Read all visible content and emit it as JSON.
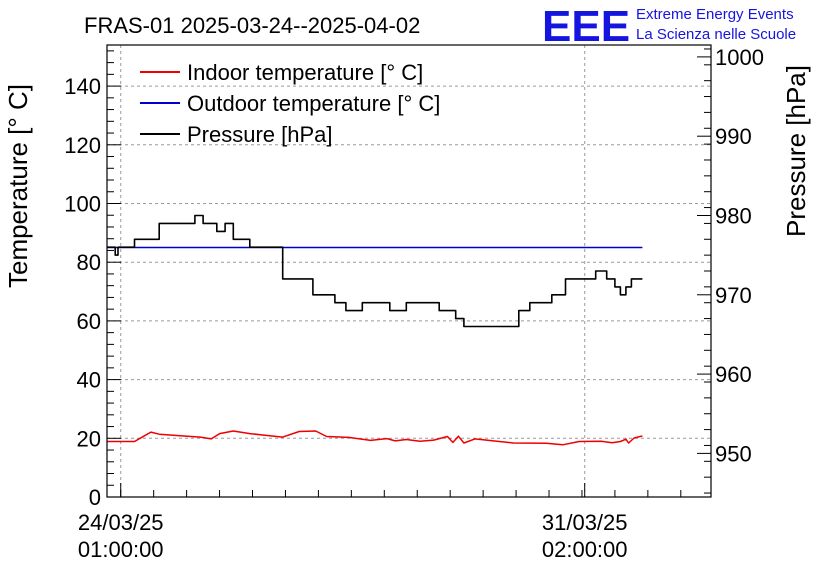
{
  "logo": {
    "mark": "EEE",
    "line1": "Extreme Energy Events",
    "line2": "La Scienza nelle Scuole",
    "color": "#1515e0"
  },
  "chart_data": {
    "type": "line",
    "title": "FRAS-01 2025-03-24--2025-04-02",
    "ylabel": "Temperature [° C]",
    "y2label": "Pressure [hPa]",
    "xlabel": "",
    "x_axis": {
      "type": "datetime",
      "range": [
        "2025-03-23 20:00:00",
        "2025-04-02 00:00:00"
      ],
      "tick_labels": [
        {
          "date": "2025-03-24 01:00:00",
          "line1": "24/03/25",
          "line2": "01:00:00"
        },
        {
          "date": "2025-03-31 02:00:00",
          "line1": "31/03/25",
          "line2": "02:00:00"
        }
      ]
    },
    "ylim": [
      0,
      154
    ],
    "yticks": [
      0,
      20,
      40,
      60,
      80,
      100,
      120,
      140
    ],
    "y2lim": [
      944.5,
      1001.5
    ],
    "y2ticks": [
      950,
      960,
      970,
      980,
      990,
      1000
    ],
    "grid": true,
    "legend_position": "top-left",
    "series": [
      {
        "name": "Indoor temperature [° C]",
        "axis": "left",
        "color": "#ee0000",
        "points": [
          [
            "2025-03-23 20:00",
            18.9
          ],
          [
            "2025-03-24 06:00",
            18.9
          ],
          [
            "2025-03-24 09:00",
            20.5
          ],
          [
            "2025-03-24 12:00",
            22.1
          ],
          [
            "2025-03-24 15:00",
            21.4
          ],
          [
            "2025-03-25 00:00",
            20.8
          ],
          [
            "2025-03-25 06:00",
            20.4
          ],
          [
            "2025-03-25 10:00",
            19.8
          ],
          [
            "2025-03-25 13:00",
            21.6
          ],
          [
            "2025-03-25 18:00",
            22.5
          ],
          [
            "2025-03-26 00:00",
            21.6
          ],
          [
            "2025-03-26 06:00",
            21.0
          ],
          [
            "2025-03-26 12:00",
            20.4
          ],
          [
            "2025-03-26 18:00",
            22.3
          ],
          [
            "2025-03-27 00:00",
            22.5
          ],
          [
            "2025-03-27 04:00",
            20.6
          ],
          [
            "2025-03-27 12:00",
            20.3
          ],
          [
            "2025-03-27 20:00",
            19.3
          ],
          [
            "2025-03-28 02:00",
            19.9
          ],
          [
            "2025-03-28 05:00",
            19.1
          ],
          [
            "2025-03-28 09:00",
            19.6
          ],
          [
            "2025-03-28 14:00",
            19.0
          ],
          [
            "2025-03-28 19:00",
            19.4
          ],
          [
            "2025-03-29 00:00",
            20.6
          ],
          [
            "2025-03-29 02:00",
            18.6
          ],
          [
            "2025-03-29 04:00",
            20.7
          ],
          [
            "2025-03-29 06:00",
            18.4
          ],
          [
            "2025-03-29 10:00",
            19.8
          ],
          [
            "2025-03-29 18:00",
            19.0
          ],
          [
            "2025-03-30 00:00",
            18.4
          ],
          [
            "2025-03-30 12:00",
            18.3
          ],
          [
            "2025-03-30 18:00",
            17.8
          ],
          [
            "2025-03-31 00:00",
            18.9
          ],
          [
            "2025-03-31 08:00",
            19.0
          ],
          [
            "2025-03-31 12:00",
            18.5
          ],
          [
            "2025-03-31 15:00",
            18.9
          ],
          [
            "2025-03-31 17:00",
            19.7
          ],
          [
            "2025-03-31 18:00",
            18.4
          ],
          [
            "2025-03-31 20:00",
            20.1
          ],
          [
            "2025-03-31 23:00",
            20.8
          ]
        ]
      },
      {
        "name": "Outdoor temperature [° C]",
        "axis": "left",
        "color": "#0000cc",
        "points": [
          [
            "2025-03-23 20:00",
            85.0
          ],
          [
            "2025-03-31 23:00",
            85.0
          ]
        ]
      },
      {
        "name": "Pressure [hPa]",
        "axis": "right",
        "color": "#000000",
        "points": [
          [
            "2025-03-23 20:00",
            976.0
          ],
          [
            "2025-03-23 23:00",
            975.0
          ],
          [
            "2025-03-24 00:00",
            976.0
          ],
          [
            "2025-03-24 04:00",
            976.0
          ],
          [
            "2025-03-24 06:00",
            977.0
          ],
          [
            "2025-03-24 12:00",
            977.0
          ],
          [
            "2025-03-24 15:00",
            979.0
          ],
          [
            "2025-03-25 02:00",
            979.0
          ],
          [
            "2025-03-25 04:00",
            980.0
          ],
          [
            "2025-03-25 07:00",
            979.0
          ],
          [
            "2025-03-25 12:00",
            978.0
          ],
          [
            "2025-03-25 15:00",
            979.0
          ],
          [
            "2025-03-25 18:00",
            977.0
          ],
          [
            "2025-03-26 00:00",
            976.0
          ],
          [
            "2025-03-26 05:00",
            976.0
          ],
          [
            "2025-03-26 12:00",
            972.0
          ],
          [
            "2025-03-26 17:00",
            972.0
          ],
          [
            "2025-03-26 23:00",
            970.0
          ],
          [
            "2025-03-27 07:00",
            969.0
          ],
          [
            "2025-03-27 11:00",
            968.0
          ],
          [
            "2025-03-27 15:00",
            968.0
          ],
          [
            "2025-03-27 17:00",
            969.0
          ],
          [
            "2025-03-27 23:00",
            969.0
          ],
          [
            "2025-03-28 03:00",
            968.0
          ],
          [
            "2025-03-28 09:00",
            969.0
          ],
          [
            "2025-03-28 16:00",
            969.0
          ],
          [
            "2025-03-28 21:00",
            968.0
          ],
          [
            "2025-03-29 03:00",
            967.0
          ],
          [
            "2025-03-29 06:00",
            966.0
          ],
          [
            "2025-03-29 19:00",
            966.0
          ],
          [
            "2025-03-30 02:00",
            968.0
          ],
          [
            "2025-03-30 06:00",
            969.0
          ],
          [
            "2025-03-30 09:00",
            969.0
          ],
          [
            "2025-03-30 14:00",
            970.0
          ],
          [
            "2025-03-30 19:00",
            972.0
          ],
          [
            "2025-03-31 02:00",
            972.0
          ],
          [
            "2025-03-31 06:00",
            973.0
          ],
          [
            "2025-03-31 10:00",
            972.0
          ],
          [
            "2025-03-31 13:00",
            971.0
          ],
          [
            "2025-03-31 15:00",
            970.0
          ],
          [
            "2025-03-31 17:00",
            971.0
          ],
          [
            "2025-03-31 19:00",
            972.0
          ],
          [
            "2025-03-31 23:00",
            972.0
          ]
        ]
      }
    ]
  }
}
